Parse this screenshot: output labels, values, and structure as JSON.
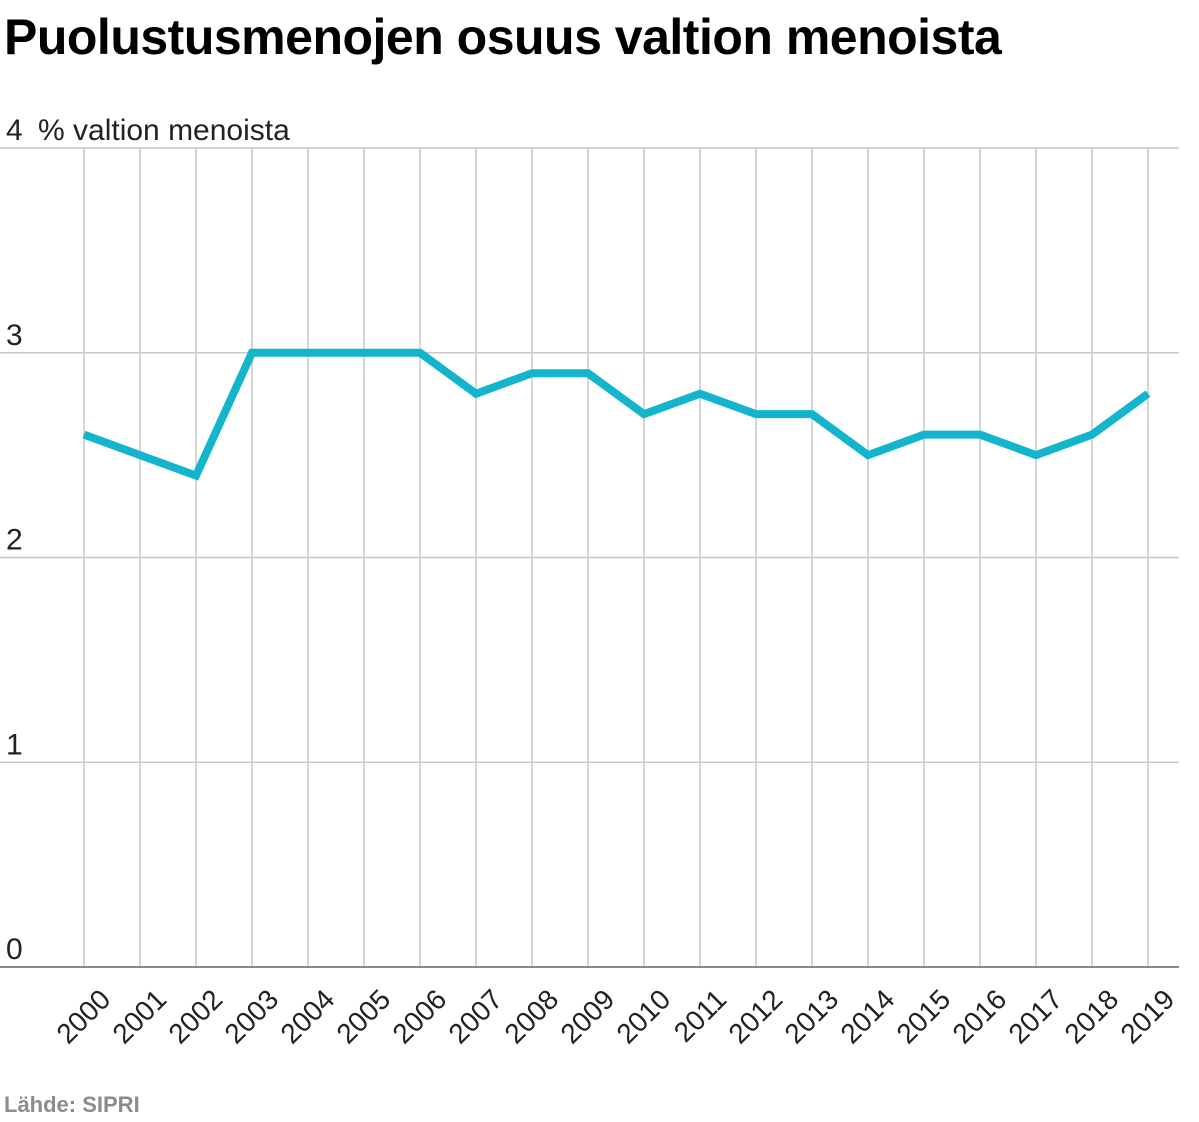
{
  "chart_data": {
    "type": "line",
    "title": "Puolustusmenojen osuus valtion menoista",
    "ylabel": "% valtion menoista",
    "xlabel": "",
    "x": [
      "2000",
      "2001",
      "2002",
      "2003",
      "2004",
      "2005",
      "2006",
      "2007",
      "2008",
      "2009",
      "2010",
      "2011",
      "2012",
      "2013",
      "2014",
      "2015",
      "2016",
      "2017",
      "2018",
      "2019"
    ],
    "series": [
      {
        "values": [
          2.6,
          2.5,
          2.4,
          3.0,
          3.0,
          3.0,
          3.0,
          2.8,
          2.9,
          2.9,
          2.7,
          2.8,
          2.7,
          2.7,
          2.5,
          2.6,
          2.6,
          2.5,
          2.6,
          2.8
        ]
      }
    ],
    "yticks": [
      "0",
      "1",
      "2",
      "3",
      "4"
    ],
    "ylim": [
      0,
      4
    ],
    "grid": true,
    "colors": {
      "line": "#12b5cb",
      "grid": "#c8c8c8",
      "baseline": "#8a8a8a"
    }
  },
  "source": "Lähde: SIPRI"
}
